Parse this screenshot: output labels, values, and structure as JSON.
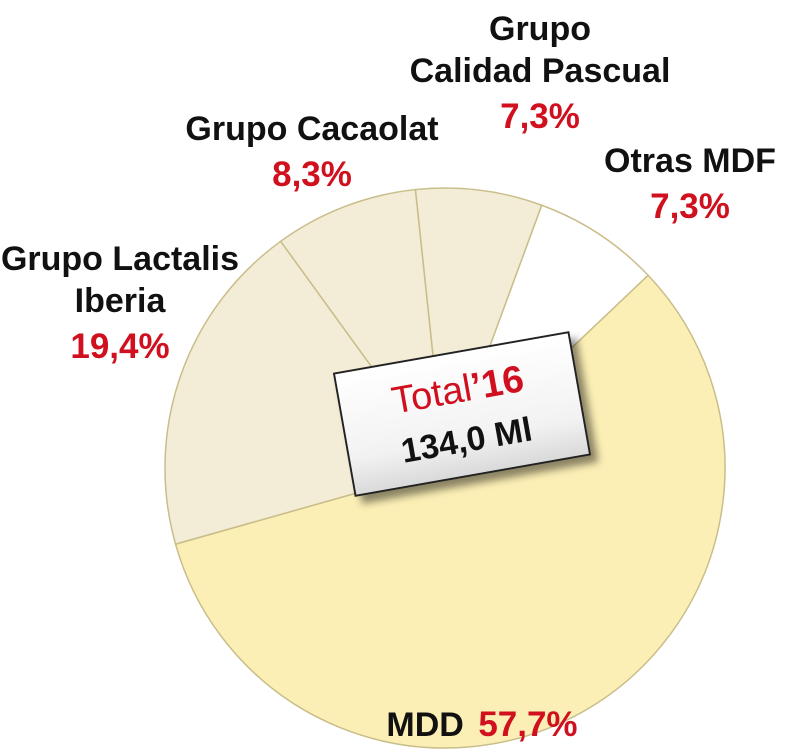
{
  "chart_data": {
    "type": "pie",
    "unit": "%",
    "slices": [
      {
        "label": "MDD",
        "value": 57.7,
        "value_label": "57,7%",
        "color": "#fcefb5"
      },
      {
        "label": "Grupo Lactalis Iberia",
        "label_lines": [
          "Grupo Lactalis",
          "Iberia"
        ],
        "value": 19.4,
        "value_label": "19,4%",
        "color": "#f3ecd6"
      },
      {
        "label": "Grupo Cacaolat",
        "label_lines": [
          "Grupo Cacaolat"
        ],
        "value": 8.3,
        "value_label": "8,3%",
        "color": "#f3ecd6"
      },
      {
        "label": "Grupo Calidad Pascual",
        "label_lines": [
          "Grupo",
          "Calidad Pascual"
        ],
        "value": 7.3,
        "value_label": "7,3%",
        "color": "#f3ecd6"
      },
      {
        "label": "Otras MDF",
        "label_lines": [
          "Otras MDF"
        ],
        "value": 7.3,
        "value_label": "7,3%",
        "color": "#ffffff"
      }
    ],
    "total": {
      "word": "Total",
      "year": "’16",
      "value": "134,0 Ml"
    }
  },
  "colors": {
    "accent_red": "#d0101e",
    "label_text": "#111111",
    "slice_border": "#c9be8a"
  }
}
